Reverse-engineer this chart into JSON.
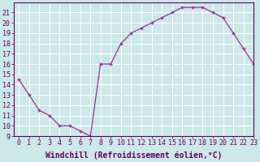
{
  "x": [
    0,
    1,
    2,
    3,
    4,
    5,
    6,
    7,
    8,
    9,
    10,
    11,
    12,
    13,
    14,
    15,
    16,
    17,
    18,
    19,
    20,
    21,
    22,
    23
  ],
  "y": [
    14.5,
    13.0,
    11.5,
    11.0,
    10.0,
    10.0,
    9.5,
    9.0,
    16.0,
    16.0,
    18.0,
    19.0,
    19.5,
    20.0,
    20.5,
    21.0,
    21.5,
    21.5,
    21.5,
    21.0,
    20.5,
    19.0,
    17.5,
    16.0
  ],
  "line_color": "#993399",
  "marker": "+",
  "bg_color": "#cce8e8",
  "grid_color": "#b0d8d8",
  "xlabel": "Windchill (Refroidissement éolien,°C)",
  "ylim": [
    9,
    22
  ],
  "xlim": [
    -0.5,
    23
  ],
  "yticks": [
    9,
    10,
    11,
    12,
    13,
    14,
    15,
    16,
    17,
    18,
    19,
    20,
    21
  ],
  "xticks": [
    0,
    1,
    2,
    3,
    4,
    5,
    6,
    7,
    8,
    9,
    10,
    11,
    12,
    13,
    14,
    15,
    16,
    17,
    18,
    19,
    20,
    21,
    22,
    23
  ],
  "tick_color": "#660066",
  "label_color": "#660066",
  "xlabel_fontsize": 7.0,
  "tick_fontsize": 6.0,
  "spine_color": "#660066"
}
